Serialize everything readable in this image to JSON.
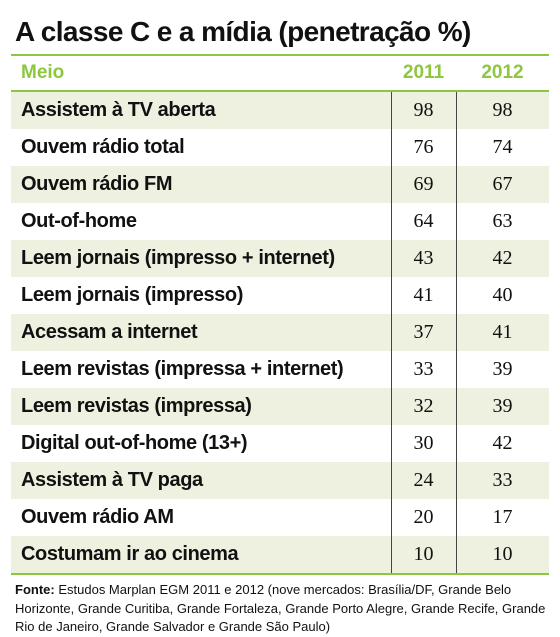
{
  "title": "A classe C e a mídia (penetração %)",
  "chart_data": {
    "type": "table",
    "title": "A classe C e a mídia (penetração %)",
    "columns": [
      "Meio",
      "2011",
      "2012"
    ],
    "rows": [
      {
        "label": "Assistem à TV aberta",
        "v2011": 98,
        "v2012": 98
      },
      {
        "label": "Ouvem rádio total",
        "v2011": 76,
        "v2012": 74
      },
      {
        "label": "Ouvem rádio FM",
        "v2011": 69,
        "v2012": 67
      },
      {
        "label": "Out-of-home",
        "v2011": 64,
        "v2012": 63
      },
      {
        "label": "Leem jornais (impresso + internet)",
        "v2011": 43,
        "v2012": 42
      },
      {
        "label": "Leem jornais (impresso)",
        "v2011": 41,
        "v2012": 40
      },
      {
        "label": "Acessam a internet",
        "v2011": 37,
        "v2012": 41
      },
      {
        "label": "Leem revistas (impressa + internet)",
        "v2011": 33,
        "v2012": 39
      },
      {
        "label": "Leem revistas (impressa)",
        "v2011": 32,
        "v2012": 39
      },
      {
        "label": "Digital out-of-home (13+)",
        "v2011": 30,
        "v2012": 42
      },
      {
        "label": "Assistem à TV paga",
        "v2011": 24,
        "v2012": 33
      },
      {
        "label": "Ouvem rádio AM",
        "v2011": 20,
        "v2012": 17
      },
      {
        "label": "Costumam ir ao cinema",
        "v2011": 10,
        "v2012": 10
      }
    ]
  },
  "source": {
    "label": "Fonte:",
    "text": "Estudos Marplan EGM 2011 e 2012 (nove mercados: Brasília/DF, Grande Belo Horizonte, Grande Curitiba, Grande Fortaleza, Grande Porto Alegre, Grande Recife, Grande Rio de Janeiro, Grande Salvador e Grande São Paulo)"
  },
  "colors": {
    "accent": "#8dc63f",
    "row_shade": "#eef1e0",
    "text": "#111111"
  }
}
